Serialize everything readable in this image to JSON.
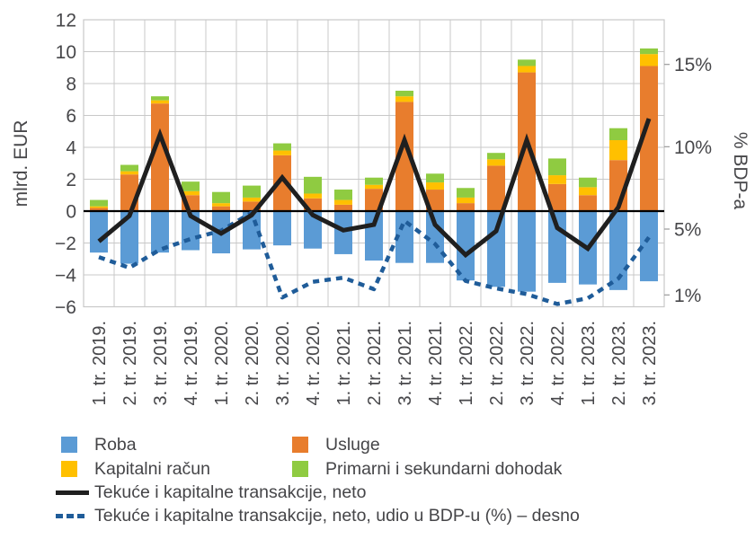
{
  "chart_data": {
    "type": "bar",
    "subtype": "stacked-bar-with-lines-dual-axis",
    "categories": [
      "1. tr. 2019.",
      "2. tr. 2019.",
      "3. tr. 2019.",
      "4. tr. 2019.",
      "1. tr. 2020.",
      "2. tr. 2020.",
      "3. tr. 2020.",
      "4. tr. 2020.",
      "1. tr. 2021.",
      "2. tr. 2021.",
      "3. tr. 2021.",
      "4. tr. 2021.",
      "1. tr. 2022.",
      "2. tr. 2022.",
      "3. tr. 2022.",
      "4. tr. 2022.",
      "1. tr. 2023.",
      "2. tr. 2023.",
      "3. tr. 2023."
    ],
    "series": [
      {
        "name": "Roba",
        "type": "bar",
        "axis": "left",
        "color": "#5B9BD5",
        "values": [
          -2.6,
          -3.3,
          -2.6,
          -2.45,
          -2.65,
          -2.4,
          -2.15,
          -2.35,
          -2.7,
          -3.1,
          -3.25,
          -3.25,
          -4.35,
          -4.75,
          -5.05,
          -4.5,
          -4.6,
          -4.95,
          -4.4
        ]
      },
      {
        "name": "Usluge",
        "type": "bar",
        "axis": "left",
        "color": "#E87D2D",
        "values": [
          0.2,
          2.3,
          6.75,
          1.0,
          0.3,
          0.6,
          3.5,
          0.8,
          0.4,
          1.4,
          6.85,
          1.35,
          0.5,
          2.85,
          8.7,
          1.7,
          1.0,
          3.2,
          9.1
        ]
      },
      {
        "name": "Kapitalni račun",
        "type": "bar",
        "axis": "left",
        "color": "#FFC000",
        "values": [
          0.1,
          0.2,
          0.2,
          0.25,
          0.2,
          0.25,
          0.3,
          0.3,
          0.3,
          0.25,
          0.35,
          0.45,
          0.35,
          0.4,
          0.4,
          0.55,
          0.5,
          1.25,
          0.75
        ]
      },
      {
        "name": "Primarni i sekundarni dohodak",
        "type": "bar",
        "axis": "left",
        "color": "#8FCB41",
        "values": [
          0.4,
          0.4,
          0.25,
          0.6,
          0.7,
          0.75,
          0.45,
          1.05,
          0.65,
          0.45,
          0.35,
          0.55,
          0.6,
          0.4,
          0.4,
          1.05,
          0.6,
          0.75,
          0.35
        ]
      },
      {
        "name": "Tekuće i kapitalne transakcije, neto",
        "type": "line",
        "axis": "left",
        "color": "#1F1F1F",
        "values": [
          -1.9,
          -0.3,
          4.8,
          -0.3,
          -1.4,
          -0.25,
          2.1,
          -0.25,
          -1.2,
          -0.85,
          4.45,
          -0.85,
          -2.75,
          -1.25,
          4.45,
          -1.05,
          -2.35,
          0.25,
          5.8
        ]
      },
      {
        "name": "Tekuće i kapitalne transakcije, neto, udio u BDP-u (%) – desno",
        "type": "line-dashed",
        "axis": "right",
        "color": "#1F5C99",
        "values": [
          3.3,
          2.65,
          3.75,
          4.4,
          4.9,
          6.0,
          0.85,
          1.8,
          2.05,
          1.35,
          5.5,
          4.1,
          1.85,
          1.4,
          1.05,
          0.45,
          0.8,
          2.0,
          4.5
        ]
      }
    ],
    "left_axis": {
      "title": "mlrd. EUR",
      "min": -6,
      "max": 12,
      "tick_step": 2,
      "tick_labels": [
        "12",
        "10",
        "8",
        "6",
        "4",
        "2",
        "0",
        "−2",
        "−4",
        "−6"
      ],
      "tick_values": [
        12,
        10,
        8,
        6,
        4,
        2,
        0,
        -2,
        -4,
        -6
      ]
    },
    "right_axis": {
      "title": "% BDP-a",
      "tick_labels": [
        "15%",
        "10%",
        "5%",
        "1%"
      ],
      "tick_values": [
        15,
        10,
        5,
        1
      ]
    },
    "grid": true,
    "legend_position": "bottom"
  },
  "legend": {
    "items": [
      {
        "label": "Roba",
        "marker": "square",
        "color": "#5B9BD5"
      },
      {
        "label": "Usluge",
        "marker": "square",
        "color": "#E87D2D"
      },
      {
        "label": "Kapitalni račun",
        "marker": "square",
        "color": "#FFC000"
      },
      {
        "label": "Primarni i sekundarni dohodak",
        "marker": "square",
        "color": "#8FCB41"
      },
      {
        "label": "Tekuće i kapitalne transakcije, neto",
        "marker": "solid-line",
        "color": "#1F1F1F"
      },
      {
        "label": "Tekuće i kapitalne transakcije, neto, udio u BDP-u (%) – desno",
        "marker": "dashed-line",
        "color": "#1F5C99"
      }
    ]
  },
  "colors": {
    "grid": "#C8C8C8",
    "zero_line": "#000000",
    "text": "#47474A"
  }
}
